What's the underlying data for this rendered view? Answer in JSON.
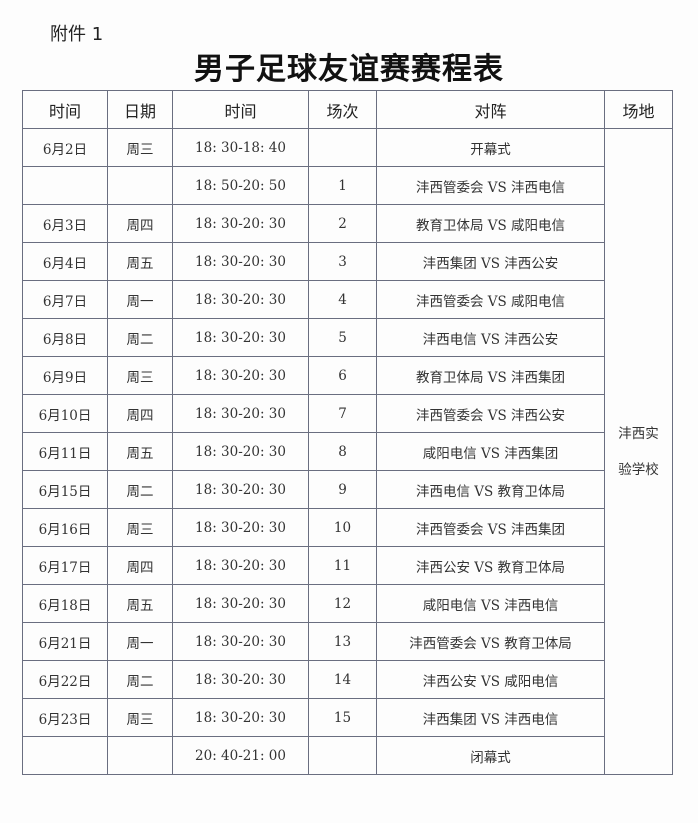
{
  "attachment": "附件 1",
  "title": "男子足球友谊赛赛程表",
  "headers": [
    "时间",
    "日期",
    "时间",
    "场次",
    "对阵",
    "场地"
  ],
  "venue_line1": "沣西实",
  "venue_line2": "验学校",
  "rows": [
    {
      "date": "6月2日",
      "weekday": "周三",
      "time": "18: 30-18: 40",
      "round": "",
      "match": "开幕式"
    },
    {
      "date": "",
      "weekday": "",
      "time": "18: 50-20: 50",
      "round": "1",
      "match": "沣西管委会 VS 沣西电信"
    },
    {
      "date": "6月3日",
      "weekday": "周四",
      "time": "18: 30-20: 30",
      "round": "2",
      "match": "教育卫体局 VS 咸阳电信"
    },
    {
      "date": "6月4日",
      "weekday": "周五",
      "time": "18: 30-20: 30",
      "round": "3",
      "match": "沣西集团 VS 沣西公安"
    },
    {
      "date": "6月7日",
      "weekday": "周一",
      "time": "18: 30-20: 30",
      "round": "4",
      "match": "沣西管委会 VS 咸阳电信"
    },
    {
      "date": "6月8日",
      "weekday": "周二",
      "time": "18: 30-20: 30",
      "round": "5",
      "match": "沣西电信 VS 沣西公安"
    },
    {
      "date": "6月9日",
      "weekday": "周三",
      "time": "18: 30-20: 30",
      "round": "6",
      "match": "教育卫体局 VS 沣西集团"
    },
    {
      "date": "6月10日",
      "weekday": "周四",
      "time": "18: 30-20: 30",
      "round": "7",
      "match": "沣西管委会 VS 沣西公安"
    },
    {
      "date": "6月11日",
      "weekday": "周五",
      "time": "18: 30-20: 30",
      "round": "8",
      "match": "咸阳电信 VS 沣西集团"
    },
    {
      "date": "6月15日",
      "weekday": "周二",
      "time": "18: 30-20: 30",
      "round": "9",
      "match": "沣西电信 VS 教育卫体局"
    },
    {
      "date": "6月16日",
      "weekday": "周三",
      "time": "18: 30-20: 30",
      "round": "10",
      "match": "沣西管委会 VS 沣西集团"
    },
    {
      "date": "6月17日",
      "weekday": "周四",
      "time": "18: 30-20: 30",
      "round": "11",
      "match": "沣西公安 VS 教育卫体局"
    },
    {
      "date": "6月18日",
      "weekday": "周五",
      "time": "18: 30-20: 30",
      "round": "12",
      "match": "咸阳电信 VS 沣西电信"
    },
    {
      "date": "6月21日",
      "weekday": "周一",
      "time": "18: 30-20: 30",
      "round": "13",
      "match": "沣西管委会 VS 教育卫体局"
    },
    {
      "date": "6月22日",
      "weekday": "周二",
      "time": "18: 30-20: 30",
      "round": "14",
      "match": "沣西公安 VS 咸阳电信"
    },
    {
      "date": "6月23日",
      "weekday": "周三",
      "time": "18: 30-20: 30",
      "round": "15",
      "match": "沣西集团 VS 沣西电信"
    },
    {
      "date": "",
      "weekday": "",
      "time": "20: 40-21: 00",
      "round": "",
      "match": "闭幕式"
    }
  ]
}
